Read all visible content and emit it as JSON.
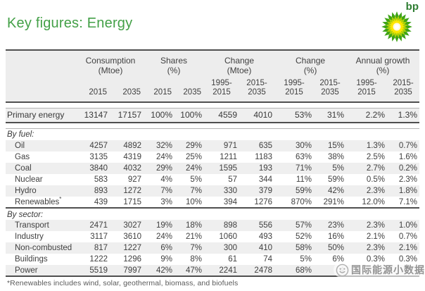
{
  "header": {
    "title": "Key figures: Energy",
    "logo_text": "bp"
  },
  "colors": {
    "title_green": "#43a047",
    "logo_outer_green": "#3fa317",
    "logo_mid_green": "#aacf0a",
    "logo_yellow": "#ffe600",
    "rule_dark": "#4f4f4f",
    "rule_light": "#b3b3b3",
    "row_band_gray": "#efefef"
  },
  "table": {
    "column_groups": [
      {
        "title": "Consumption",
        "unit": "(Mtoe)",
        "subcols": [
          "2015",
          "2035"
        ]
      },
      {
        "title": "Shares",
        "unit": "(%)",
        "subcols": [
          "2015",
          "2035"
        ]
      },
      {
        "title": "Change",
        "unit": "(Mtoe)",
        "subcols": [
          "1995-\n2015",
          "2015-\n2035"
        ]
      },
      {
        "title": "Change",
        "unit": "(%)",
        "subcols": [
          "1995-\n2015",
          "2015-\n2035"
        ]
      },
      {
        "title": "Annual growth",
        "unit": "(%)",
        "subcols": [
          "1995-\n2015",
          "2015-\n2035"
        ]
      }
    ],
    "summary_row": {
      "label": "Primary energy",
      "values": [
        "13147",
        "17157",
        "100%",
        "100%",
        "4559",
        "4010",
        "53%",
        "31%",
        "2.2%",
        "1.3%"
      ]
    },
    "sections": [
      {
        "heading": "By fuel:",
        "rows": [
          {
            "label": "Oil",
            "values": [
              "4257",
              "4892",
              "32%",
              "29%",
              "971",
              "635",
              "30%",
              "15%",
              "1.3%",
              "0.7%"
            ]
          },
          {
            "label": "Gas",
            "values": [
              "3135",
              "4319",
              "24%",
              "25%",
              "1211",
              "1183",
              "63%",
              "38%",
              "2.5%",
              "1.6%"
            ]
          },
          {
            "label": "Coal",
            "values": [
              "3840",
              "4032",
              "29%",
              "24%",
              "1595",
              "193",
              "71%",
              "5%",
              "2.7%",
              "0.2%"
            ]
          },
          {
            "label": "Nuclear",
            "values": [
              "583",
              "927",
              "4%",
              "5%",
              "57",
              "344",
              "11%",
              "59%",
              "0.5%",
              "2.3%"
            ]
          },
          {
            "label": "Hydro",
            "values": [
              "893",
              "1272",
              "7%",
              "7%",
              "330",
              "379",
              "59%",
              "42%",
              "2.3%",
              "1.8%"
            ]
          },
          {
            "label": "Renewables*",
            "values": [
              "439",
              "1715",
              "3%",
              "10%",
              "394",
              "1276",
              "870%",
              "291%",
              "12.0%",
              "7.1%"
            ]
          }
        ]
      },
      {
        "heading": "By sector:",
        "rows": [
          {
            "label": "Transport",
            "values": [
              "2471",
              "3027",
              "19%",
              "18%",
              "898",
              "556",
              "57%",
              "23%",
              "2.3%",
              "1.0%"
            ]
          },
          {
            "label": "Industry",
            "values": [
              "3117",
              "3610",
              "24%",
              "21%",
              "1060",
              "493",
              "52%",
              "16%",
              "2.1%",
              "0.7%"
            ]
          },
          {
            "label": "Non-combusted",
            "values": [
              "817",
              "1227",
              "6%",
              "7%",
              "300",
              "410",
              "58%",
              "50%",
              "2.3%",
              "2.1%"
            ]
          },
          {
            "label": "Buildings",
            "values": [
              "1222",
              "1296",
              "9%",
              "8%",
              "61",
              "74",
              "5%",
              "6%",
              "0.3%",
              "0.3%"
            ]
          },
          {
            "label": "Power",
            "values": [
              "5519",
              "7997",
              "42%",
              "47%",
              "2241",
              "2478",
              "68%",
              "4",
              "",
              ""
            ]
          }
        ]
      }
    ],
    "footnote": "*Renewables includes wind, solar, geothermal, biomass, and biofuels"
  },
  "watermark": {
    "text": "国际能源小数据"
  }
}
